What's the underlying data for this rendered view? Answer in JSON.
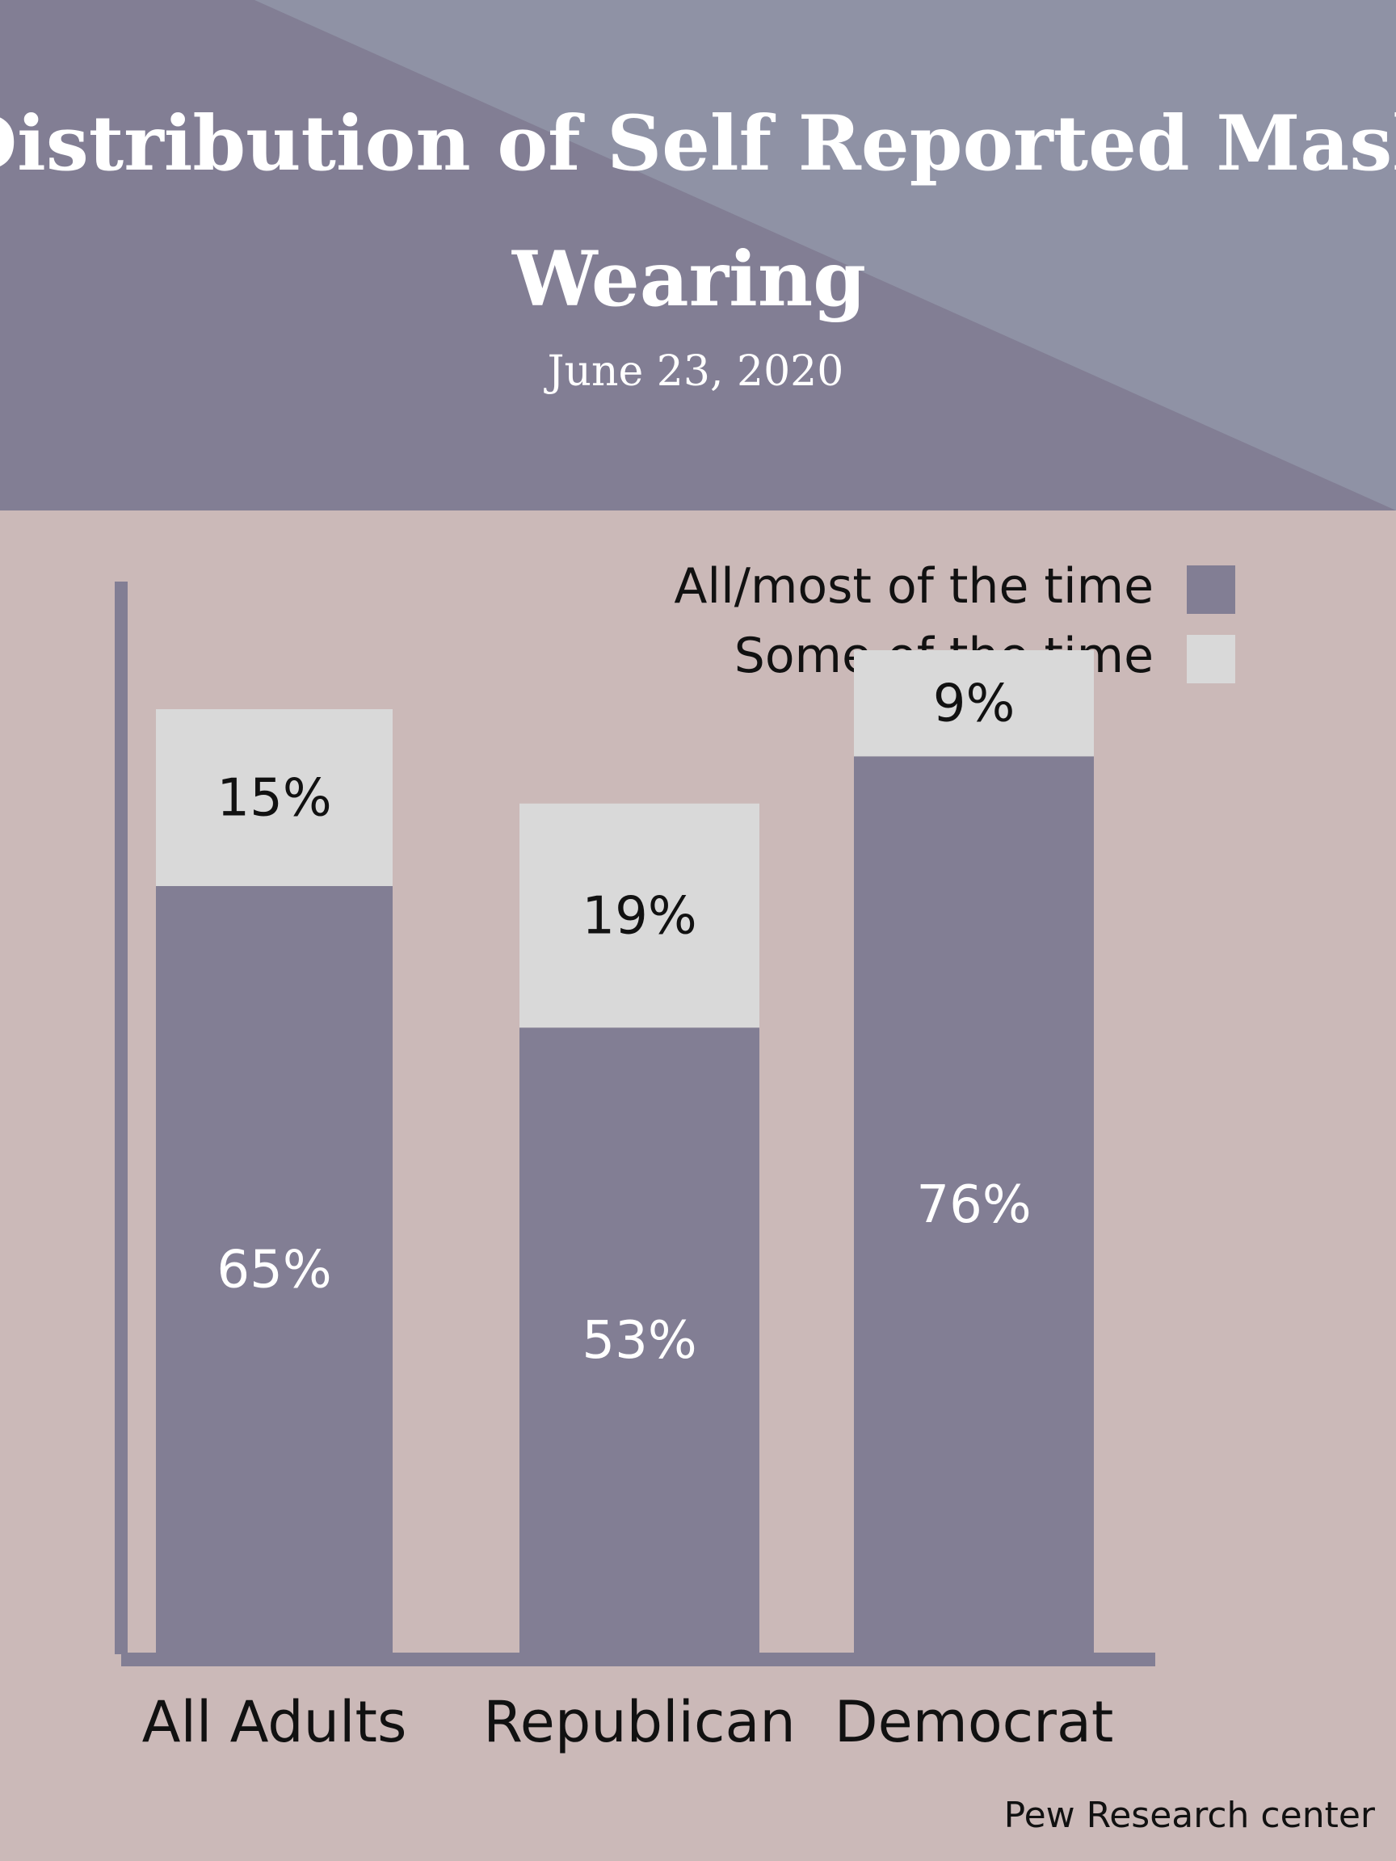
{
  "header": {
    "title_line1": "Distribution of Self Reported Mask",
    "title_line2": "Wearing",
    "date": "June 23, 2020"
  },
  "source": "Pew Research center",
  "colors": {
    "header_dark": "#827e94",
    "header_light": "#8f92a5",
    "background": "#cbb9b8",
    "bar_dark": "#827e94",
    "bar_light": "#d9d9d9",
    "axis": "#827e94",
    "text_dark": "#111111",
    "text_light": "#ffffff"
  },
  "chart_data": {
    "type": "bar",
    "stacked": true,
    "categories": [
      "All Adults",
      "Republican",
      "Democrat"
    ],
    "series": [
      {
        "name": "All/most of the time",
        "values": [
          65,
          53,
          76
        ],
        "labels": [
          "65%",
          "53%",
          "76%"
        ],
        "color": "#827e94"
      },
      {
        "name": "Some of the time",
        "values": [
          15,
          19,
          9
        ],
        "labels": [
          "15%",
          "19%",
          "9%"
        ],
        "color": "#d9d9d9"
      }
    ],
    "legend_position": "top-right",
    "grid": false
  }
}
